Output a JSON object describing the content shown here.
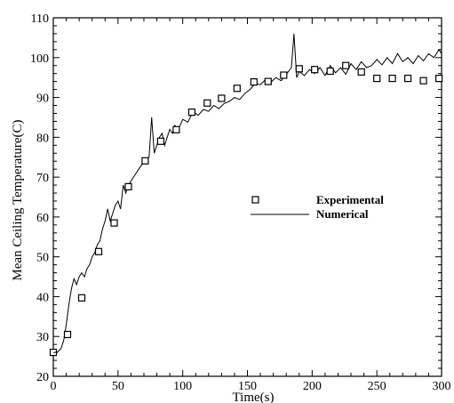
{
  "chart_data": {
    "type": "line",
    "title": "",
    "xlabel": "Time(s)",
    "ylabel": "Mean Ceiling Temperature(C)",
    "xlim": [
      0,
      300
    ],
    "ylim": [
      20,
      110
    ],
    "xticks": [
      0,
      50,
      100,
      150,
      200,
      250,
      300
    ],
    "yticks": [
      20,
      30,
      40,
      50,
      60,
      70,
      80,
      90,
      100,
      110
    ],
    "grid": false,
    "legend_position": "center-right",
    "series": [
      {
        "name": "Experimental",
        "kind": "scatter",
        "marker": "open-square",
        "color": "#000000",
        "x": [
          0,
          11,
          22,
          35,
          47,
          58,
          71,
          83,
          95,
          107,
          119,
          130,
          142,
          155,
          166,
          178,
          190,
          202,
          214,
          226,
          238,
          250,
          262,
          274,
          286,
          298
        ],
        "y": [
          26,
          30.5,
          39.7,
          51.3,
          58.5,
          67.6,
          74.1,
          79,
          81.9,
          86.3,
          88.6,
          89.8,
          92.3,
          93.9,
          94,
          95.6,
          97.2,
          97,
          96.6,
          98,
          96.4,
          94.8,
          94.8,
          94.8,
          94.2,
          94.8
        ]
      },
      {
        "name": "Numerical",
        "kind": "line",
        "color": "#000000",
        "x": [
          0,
          3,
          6,
          8,
          10,
          12,
          14,
          16,
          18,
          20,
          22,
          24,
          26,
          28,
          30,
          32,
          34,
          36,
          38,
          40,
          42,
          44,
          46,
          48,
          50,
          52,
          54,
          56,
          58,
          60,
          62,
          64,
          66,
          68,
          70,
          72,
          74,
          76,
          78,
          80,
          82,
          84,
          86,
          88,
          90,
          92,
          94,
          96,
          98,
          100,
          104,
          108,
          112,
          116,
          120,
          124,
          128,
          132,
          136,
          140,
          144,
          148,
          152,
          156,
          160,
          164,
          168,
          172,
          176,
          180,
          184,
          186,
          188,
          190,
          194,
          198,
          202,
          206,
          210,
          214,
          218,
          222,
          226,
          230,
          234,
          238,
          242,
          246,
          250,
          254,
          258,
          262,
          266,
          270,
          274,
          278,
          282,
          286,
          290,
          294,
          298,
          300
        ],
        "y": [
          25.5,
          26,
          27,
          29,
          33,
          38,
          42,
          44.5,
          43,
          45,
          46,
          45,
          47,
          48,
          50,
          51,
          53,
          54,
          57,
          59,
          62,
          59,
          61,
          63,
          64,
          62,
          68,
          66,
          68,
          69,
          70,
          71,
          72,
          73,
          73.5,
          74.5,
          75,
          85,
          76,
          78,
          80,
          81,
          78,
          80,
          82,
          81,
          83,
          82,
          83,
          84.5,
          83.8,
          86.5,
          85.5,
          87,
          86.5,
          88,
          87.2,
          88.5,
          89,
          90,
          89.5,
          91,
          92,
          93.5,
          93.2,
          94.5,
          93.8,
          95,
          94.2,
          95.8,
          97.5,
          106,
          95,
          96.5,
          95.5,
          97,
          96,
          97.5,
          95.5,
          98,
          96.2,
          97.5,
          95.8,
          98.5,
          97,
          99,
          97.5,
          98,
          99.5,
          98.2,
          100,
          98.5,
          101,
          99,
          100,
          98.5,
          100.5,
          99.2,
          101,
          100,
          102,
          101
        ]
      }
    ]
  }
}
